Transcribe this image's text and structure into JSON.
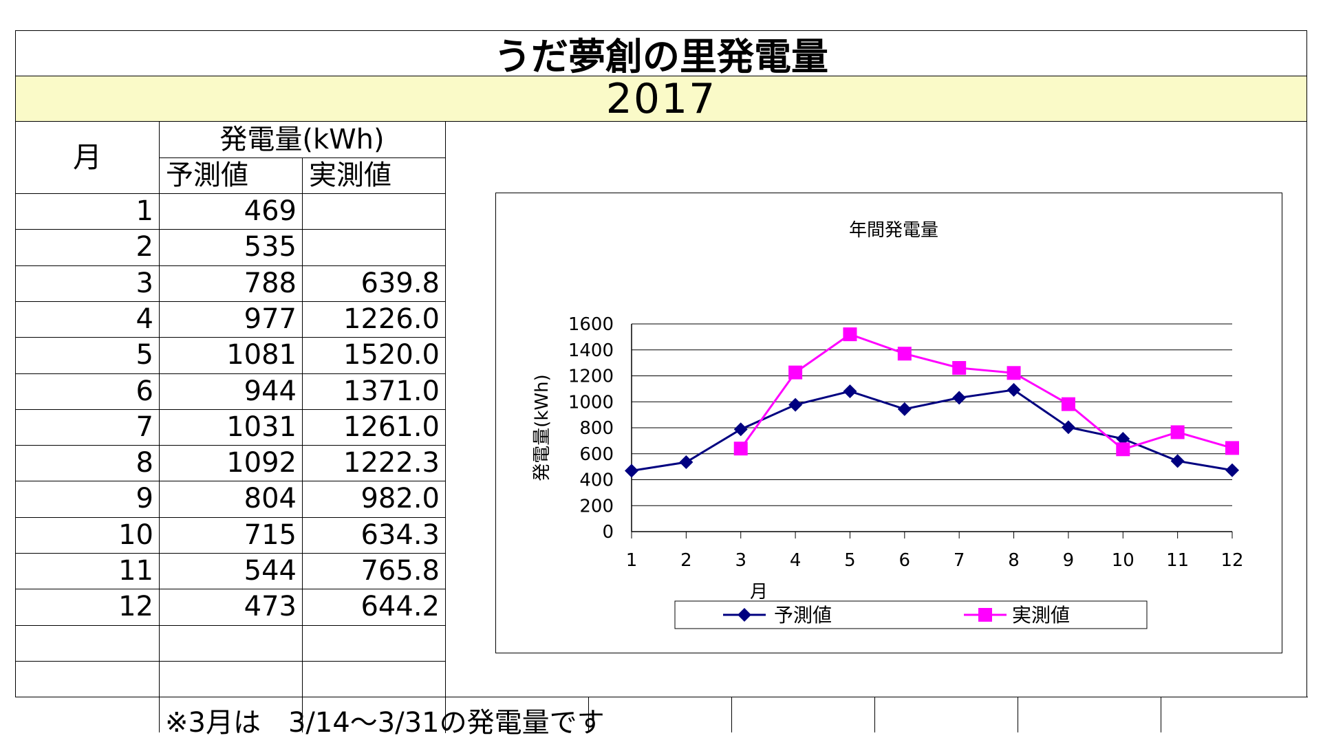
{
  "title": "うだ夢創の里発電量",
  "year": "2017",
  "table": {
    "month_header": "月",
    "group_header": "発電量(kWh)",
    "forecast_header": "予測値",
    "actual_header": "実測値",
    "rows": [
      {
        "month": "1",
        "forecast": "469",
        "actual": ""
      },
      {
        "month": "2",
        "forecast": "535",
        "actual": ""
      },
      {
        "month": "3",
        "forecast": "788",
        "actual": "639.8"
      },
      {
        "month": "4",
        "forecast": "977",
        "actual": "1226.0"
      },
      {
        "month": "5",
        "forecast": "1081",
        "actual": "1520.0"
      },
      {
        "month": "6",
        "forecast": "944",
        "actual": "1371.0"
      },
      {
        "month": "7",
        "forecast": "1031",
        "actual": "1261.0"
      },
      {
        "month": "8",
        "forecast": "1092",
        "actual": "1222.3"
      },
      {
        "month": "9",
        "forecast": "804",
        "actual": "982.0"
      },
      {
        "month": "10",
        "forecast": "715",
        "actual": "634.3"
      },
      {
        "month": "11",
        "forecast": "544",
        "actual": "765.8"
      },
      {
        "month": "12",
        "forecast": "473",
        "actual": "644.2"
      }
    ]
  },
  "footnote": "※3月は　3/14～3/31の発電量です",
  "colors": {
    "forecast": "#000080",
    "actual": "#ff00ff",
    "year_band": "#fafac8"
  },
  "chart_data": {
    "type": "line",
    "title": "年間発電量",
    "xlabel": "月",
    "ylabel": "発電量(kWh)",
    "categories": [
      "1",
      "2",
      "3",
      "4",
      "5",
      "6",
      "7",
      "8",
      "9",
      "10",
      "11",
      "12"
    ],
    "ylim": [
      0,
      1600
    ],
    "yticks": [
      0,
      200,
      400,
      600,
      800,
      1000,
      1200,
      1400,
      1600
    ],
    "grid": true,
    "legend": "bottom",
    "series": [
      {
        "name": "予測値",
        "marker": "diamond",
        "values": [
          469,
          535,
          788,
          977,
          1081,
          944,
          1031,
          1092,
          804,
          715,
          544,
          473
        ]
      },
      {
        "name": "実測値",
        "marker": "square",
        "values": [
          null,
          null,
          639.8,
          1226.0,
          1520.0,
          1371.0,
          1261.0,
          1222.3,
          982.0,
          634.3,
          765.8,
          644.2
        ]
      }
    ]
  }
}
